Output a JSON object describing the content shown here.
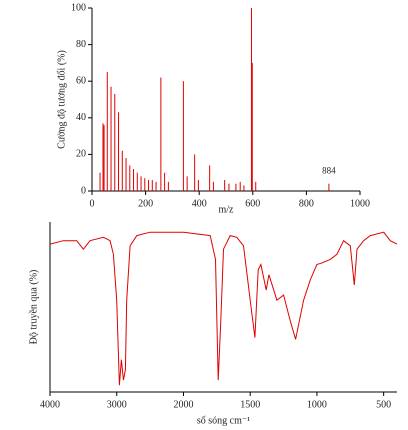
{
  "chart_data": [
    {
      "type": "stem",
      "ylabel": "Cường độ tương đối (%)",
      "xlabel": "m/z",
      "x": [
        30,
        41,
        45,
        57,
        71,
        85,
        99,
        113,
        127,
        141,
        155,
        169,
        183,
        197,
        211,
        225,
        239,
        257,
        271,
        285,
        341,
        355,
        383,
        397,
        439,
        453,
        495,
        511,
        537,
        553,
        567,
        595,
        598,
        611,
        884
      ],
      "values": [
        10,
        37,
        36,
        65,
        57,
        53,
        43,
        22,
        18,
        14,
        12,
        10,
        8,
        7,
        6,
        6,
        5,
        62,
        10,
        5,
        60,
        8,
        20,
        6,
        14,
        5,
        6,
        4,
        4,
        5,
        3,
        100,
        70,
        5,
        4
      ],
      "color": "#e00000",
      "xlim": [
        0,
        1000
      ],
      "xticks": [
        0,
        200,
        400,
        600,
        800,
        1000
      ],
      "ylim": [
        0,
        100
      ],
      "yticks": [
        0,
        20,
        40,
        60,
        80,
        100
      ],
      "annotations": [
        {
          "text": "884",
          "x": 884,
          "y": 4
        }
      ]
    },
    {
      "type": "line",
      "ylabel": "Độ truyền qua (%)",
      "xlabel": "số sóng cm⁻¹",
      "x": [
        4000,
        3800,
        3600,
        3500,
        3400,
        3200,
        3100,
        3050,
        3000,
        2960,
        2930,
        2900,
        2870,
        2850,
        2800,
        2700,
        2500,
        2000,
        1800,
        1760,
        1740,
        1720,
        1700,
        1650,
        1600,
        1550,
        1500,
        1465,
        1440,
        1420,
        1380,
        1360,
        1300,
        1250,
        1200,
        1160,
        1100,
        1050,
        1000,
        960,
        900,
        850,
        800,
        750,
        720,
        700,
        650,
        600,
        500,
        450,
        400
      ],
      "values": [
        87,
        89,
        89,
        84,
        89,
        91,
        89,
        81,
        54,
        4,
        19,
        7,
        13,
        54,
        86,
        92,
        94,
        94,
        92,
        78,
        7,
        42,
        84,
        92,
        91,
        86,
        54,
        32,
        72,
        75,
        60,
        69,
        54,
        57,
        42,
        31,
        54,
        66,
        75,
        76,
        78,
        81,
        89,
        86,
        63,
        84,
        89,
        92,
        94,
        89,
        87
      ],
      "color": "#e00000",
      "xlim": [
        4000,
        400
      ],
      "xticks": [
        4000,
        3000,
        2000,
        1500,
        1000,
        500
      ],
      "xsplit": 2000,
      "ylim": [
        0,
        100
      ]
    }
  ]
}
